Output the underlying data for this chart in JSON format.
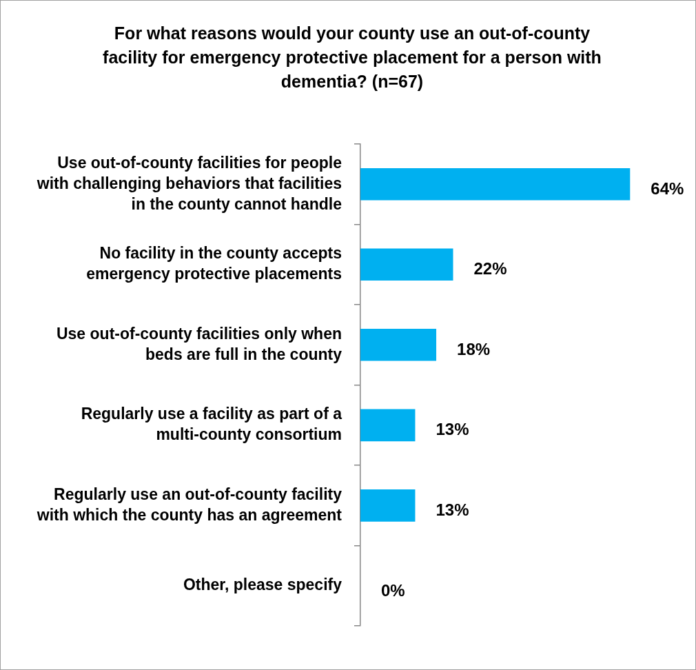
{
  "chart_data": {
    "type": "bar",
    "orientation": "horizontal",
    "title": "For what reasons would your county use an out-of-county facility for emergency protective placement for a person with dementia? (n=67)",
    "categories": [
      "Use out-of-county facilities for people with challenging behaviors that facilities in the county cannot handle",
      "No facility in the county accepts emergency protective placements",
      "Use out-of-county facilities only when beds are full in the county",
      "Regularly use a facility as part of a multi-county consortium",
      "Regularly use an out-of-county facility with which the county has an agreement",
      "Other, please specify"
    ],
    "values": [
      64,
      22,
      18,
      13,
      13,
      0
    ],
    "value_labels": [
      "64%",
      "22%",
      "18%",
      "13%",
      "13%",
      "0%"
    ],
    "color": "#00b0f0",
    "legend": false
  }
}
